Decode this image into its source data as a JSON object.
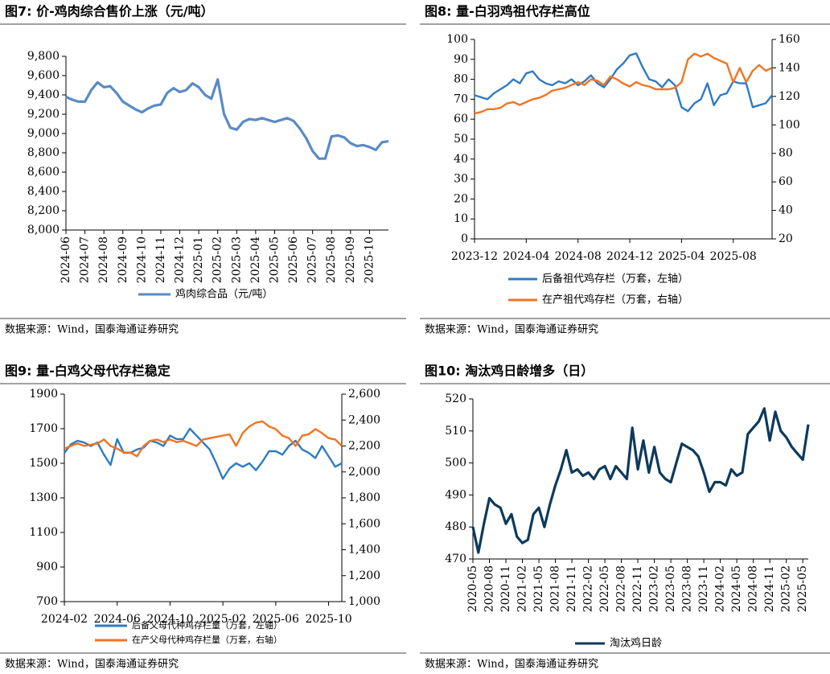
{
  "chart_data": [
    {
      "type": "line",
      "title": "图7: 价-鸡肉综合售价上涨（元/吨）",
      "source": "数据来源：Wind，国泰海通证券研究",
      "categories": [
        "2024-06",
        null,
        null,
        "2024-07",
        null,
        null,
        "2024-08",
        null,
        null,
        "2024-09",
        null,
        null,
        "2024-10",
        null,
        null,
        "2024-11",
        null,
        null,
        "2024-12",
        null,
        null,
        "2025-01",
        null,
        null,
        "2025-02",
        null,
        null,
        "2025-03",
        null,
        null,
        "2025-04",
        null,
        null,
        "2025-05",
        null,
        null,
        "2025-06",
        null,
        null,
        "2025-07",
        null,
        null,
        "2025-08",
        null,
        null,
        "2025-09",
        null,
        null,
        "2025-10",
        null,
        null,
        null
      ],
      "series": [
        {
          "name": "鸡肉综合品（元/吨）",
          "color": "#5a8ac6",
          "values": [
            9380,
            9350,
            9330,
            9330,
            9450,
            9530,
            9480,
            9490,
            9420,
            9330,
            9290,
            9250,
            9220,
            9260,
            9290,
            9300,
            9420,
            9470,
            9430,
            9450,
            9520,
            9480,
            9400,
            9360,
            9560,
            9200,
            9060,
            9040,
            9120,
            9150,
            9140,
            9160,
            9140,
            9120,
            9140,
            9160,
            9130,
            9050,
            8950,
            8820,
            8740,
            8740,
            8970,
            8980,
            8960,
            8900,
            8870,
            8880,
            8860,
            8830,
            8910,
            8920
          ]
        }
      ],
      "ylim": [
        8000,
        9800
      ],
      "yticks": [
        {
          "value": 8000,
          "label": "8,000"
        },
        {
          "value": 8200,
          "label": "8,200"
        },
        {
          "value": 8400,
          "label": "8,400"
        },
        {
          "value": 8600,
          "label": "8,600"
        },
        {
          "value": 8800,
          "label": "8,800"
        },
        {
          "value": 9000,
          "label": "9,000"
        },
        {
          "value": 9200,
          "label": "9,200"
        },
        {
          "value": 9400,
          "label": "9,400"
        },
        {
          "value": 9600,
          "label": "9,600"
        },
        {
          "value": 9800,
          "label": "9,800"
        }
      ]
    },
    {
      "type": "line",
      "title": "图8:  量-白羽鸡祖代存栏高位",
      "source": "数据来源：Wind，国泰海通证券研究",
      "categories": [
        "2023-12",
        null,
        null,
        null,
        null,
        null,
        null,
        null,
        "2024-04",
        null,
        null,
        null,
        null,
        null,
        null,
        null,
        "2024-08",
        null,
        null,
        null,
        null,
        null,
        null,
        null,
        "2024-12",
        null,
        null,
        null,
        null,
        null,
        null,
        null,
        "2025-04",
        null,
        null,
        null,
        null,
        null,
        null,
        null,
        "2025-08",
        null,
        null,
        null,
        null,
        null,
        null
      ],
      "series": [
        {
          "name": "后备祖代鸡存栏（万套，左轴）",
          "color": "#2e7bc4",
          "values": [
            72,
            71,
            70,
            73,
            75,
            77,
            80,
            78,
            83,
            84,
            80,
            78,
            77,
            79,
            78,
            80,
            77,
            79,
            82,
            78,
            76,
            80,
            85,
            88,
            92,
            93,
            86,
            80,
            79,
            76,
            80,
            77,
            66,
            64,
            68,
            70,
            78,
            67,
            72,
            73,
            79,
            78,
            78,
            66,
            67,
            68,
            72
          ]
        },
        {
          "name": "在产祖代鸡存栏（万套，右轴）",
          "color": "#f07423",
          "axis": "y2",
          "values": [
            108,
            109,
            111,
            111,
            112,
            115,
            116,
            114,
            116,
            118,
            119,
            121,
            124,
            125,
            126,
            128,
            130,
            128,
            132,
            131,
            128,
            134,
            132,
            129,
            127,
            130,
            128,
            127,
            125,
            125,
            125,
            126,
            130,
            146,
            150,
            148,
            150,
            147,
            145,
            143,
            130,
            140,
            130,
            138,
            142,
            138,
            140
          ]
        }
      ],
      "ylim": [
        0,
        100
      ],
      "yticks": [
        0,
        10,
        20,
        30,
        40,
        50,
        60,
        70,
        80,
        90,
        100
      ],
      "y2lim": [
        20,
        160
      ],
      "y2ticks": [
        20,
        40,
        60,
        80,
        100,
        120,
        140,
        160
      ]
    },
    {
      "type": "line",
      "title": "图9:  量-白鸡父母代存栏稳定",
      "source": "数据来源：Wind，国泰海通证券研究",
      "categories": [
        "2024-02",
        null,
        null,
        null,
        null,
        null,
        null,
        null,
        "2024-06",
        null,
        null,
        null,
        null,
        null,
        null,
        null,
        "2024-10",
        null,
        null,
        null,
        null,
        null,
        null,
        null,
        "2025-02",
        null,
        null,
        null,
        null,
        null,
        null,
        null,
        "2025-06",
        null,
        null,
        null,
        null,
        null,
        null,
        null,
        "2025-10",
        null,
        null
      ],
      "series": [
        {
          "name": "后备父母代种鸡存栏量（万套，左轴）",
          "color": "#2e7bc4",
          "values": [
            1560,
            1610,
            1630,
            1620,
            1600,
            1620,
            1550,
            1490,
            1640,
            1560,
            1560,
            1580,
            1590,
            1630,
            1620,
            1600,
            1660,
            1640,
            1640,
            1700,
            1660,
            1620,
            1580,
            1500,
            1410,
            1470,
            1500,
            1480,
            1500,
            1460,
            1510,
            1570,
            1570,
            1550,
            1600,
            1630,
            1580,
            1560,
            1530,
            1600,
            1540,
            1480,
            1500
          ]
        },
        {
          "name": "在产父母代种鸡存栏量（万套，右轴）",
          "color": "#f07423",
          "axis": "y2",
          "values": [
            2180,
            2200,
            2220,
            2200,
            2210,
            2220,
            2250,
            2200,
            2180,
            2150,
            2150,
            2120,
            2200,
            2240,
            2250,
            2230,
            2250,
            2230,
            2240,
            2220,
            2200,
            2250,
            2260,
            2270,
            2280,
            2290,
            2200,
            2300,
            2350,
            2380,
            2390,
            2350,
            2330,
            2280,
            2260,
            2200,
            2280,
            2290,
            2330,
            2300,
            2260,
            2250,
            2200
          ]
        }
      ],
      "ylim": [
        700,
        1900
      ],
      "yticks": [
        700,
        900,
        1100,
        1300,
        1500,
        1700,
        1900
      ],
      "y2lim": [
        1000,
        2600
      ],
      "y2ticks": [
        {
          "value": 1000,
          "label": "1,000"
        },
        {
          "value": 1200,
          "label": "1,200"
        },
        {
          "value": 1400,
          "label": "1,400"
        },
        {
          "value": 1600,
          "label": "1,600"
        },
        {
          "value": 1800,
          "label": "1,800"
        },
        {
          "value": 2000,
          "label": "2,000"
        },
        {
          "value": 2200,
          "label": "2,200"
        },
        {
          "value": 2400,
          "label": "2,400"
        },
        {
          "value": 2600,
          "label": "2,600"
        }
      ]
    },
    {
      "type": "line",
      "title": "图10:  淘汰鸡日龄增多（日）",
      "source": "数据来源：Wind，国泰海通证券研究",
      "categories": [
        "2020-05",
        null,
        null,
        "2020-08",
        null,
        null,
        "2020-11",
        null,
        null,
        "2021-02",
        null,
        null,
        "2021-05",
        null,
        null,
        "2021-08",
        null,
        null,
        "2021-11",
        null,
        null,
        "2022-02",
        null,
        null,
        "2022-05",
        null,
        null,
        "2022-08",
        null,
        null,
        "2022-11",
        null,
        null,
        "2023-02",
        null,
        null,
        "2023-05",
        null,
        null,
        "2023-08",
        null,
        null,
        "2023-11",
        null,
        null,
        "2024-02",
        null,
        null,
        "2024-05",
        null,
        null,
        "2024-08",
        null,
        null,
        "2024-11",
        null,
        null,
        "2025-02",
        null,
        null,
        "2025-05",
        null
      ],
      "series": [
        {
          "name": "淘汰鸡日龄",
          "color": "#0d3a5c",
          "values": [
            480,
            472,
            481,
            489,
            487,
            486,
            481,
            484,
            477,
            475,
            476,
            484,
            486,
            480,
            487,
            493,
            498,
            504,
            497,
            498,
            496,
            497,
            495,
            498,
            499,
            495,
            499,
            497,
            495,
            511,
            498,
            507,
            497,
            505,
            497,
            495,
            494,
            500,
            506,
            505,
            504,
            502,
            497,
            491,
            494,
            494,
            493,
            498,
            496,
            497,
            509,
            511,
            513,
            517,
            507,
            516,
            510,
            508,
            505,
            503,
            501,
            512
          ]
        }
      ],
      "ylim": [
        470,
        520
      ],
      "yticks": [
        470,
        480,
        490,
        500,
        510,
        520
      ]
    }
  ]
}
